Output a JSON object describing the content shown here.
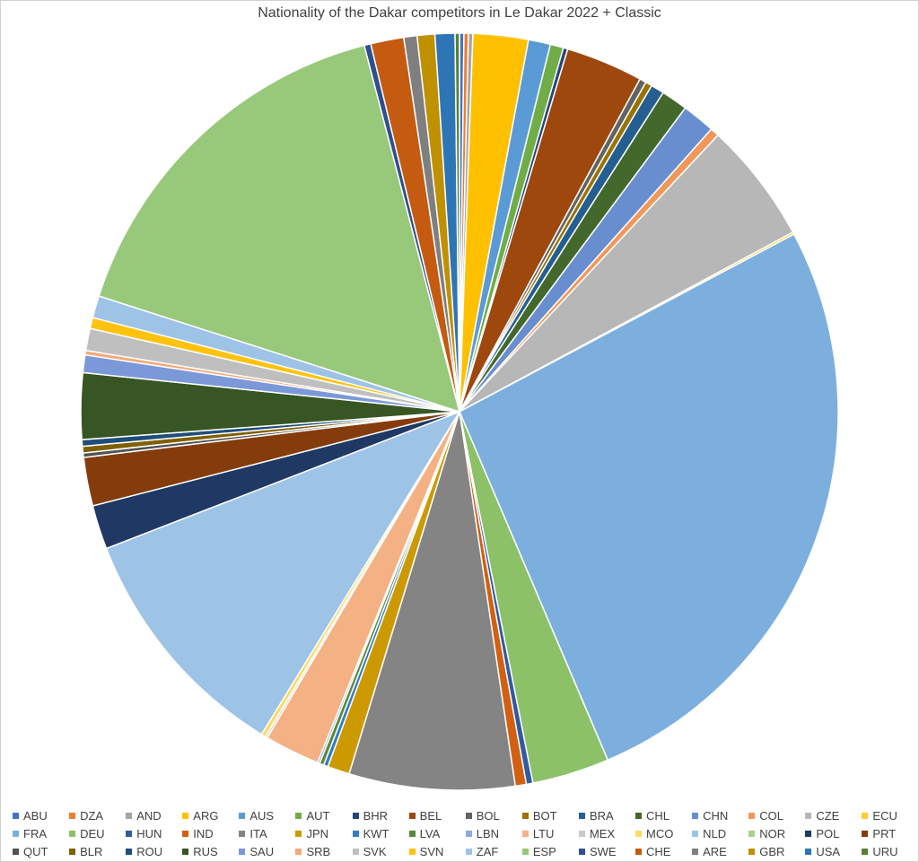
{
  "chart_data": {
    "type": "pie",
    "title": "Nationality of the Dakar competitors in Le Dakar 2022 + Classic",
    "legend_position": "bottom",
    "slices": [
      {
        "label": "ABU",
        "value": 0.2,
        "color": "#4472c4"
      },
      {
        "label": "DZA",
        "value": 0.2,
        "color": "#ed7d31"
      },
      {
        "label": "AND",
        "value": 0.2,
        "color": "#a5a5a5"
      },
      {
        "label": "ARG",
        "value": 2.5,
        "color": "#ffc000"
      },
      {
        "label": "AUS",
        "value": 1.0,
        "color": "#5b9bd5"
      },
      {
        "label": "AUT",
        "value": 0.6,
        "color": "#70ad47"
      },
      {
        "label": "BHR",
        "value": 0.2,
        "color": "#264478"
      },
      {
        "label": "BEL",
        "value": 3.5,
        "color": "#9e480e"
      },
      {
        "label": "BOL",
        "value": 0.3,
        "color": "#636363"
      },
      {
        "label": "BOT",
        "value": 0.3,
        "color": "#997300"
      },
      {
        "label": "BRA",
        "value": 0.6,
        "color": "#255e91"
      },
      {
        "label": "CHL",
        "value": 1.2,
        "color": "#43682b"
      },
      {
        "label": "CHN",
        "value": 1.5,
        "color": "#698ed0"
      },
      {
        "label": "COL",
        "value": 0.4,
        "color": "#f1975a"
      },
      {
        "label": "CZE",
        "value": 5.5,
        "color": "#b7b7b7"
      },
      {
        "label": "ECU",
        "value": 0.1,
        "color": "#ffcd33"
      },
      {
        "label": "FRA",
        "value": 28.0,
        "color": "#7cafdd"
      },
      {
        "label": "DEU",
        "value": 3.5,
        "color": "#8cc168"
      },
      {
        "label": "HUN",
        "value": 0.3,
        "color": "#335aa1"
      },
      {
        "label": "IND",
        "value": 0.5,
        "color": "#d26012"
      },
      {
        "label": "ITA",
        "value": 7.5,
        "color": "#848484"
      },
      {
        "label": "JPN",
        "value": 1.0,
        "color": "#cc9a00"
      },
      {
        "label": "KWT",
        "value": 0.2,
        "color": "#327dc2"
      },
      {
        "label": "LVA",
        "value": 0.2,
        "color": "#5a8a39"
      },
      {
        "label": "LBN",
        "value": 0.1,
        "color": "#8faadc"
      },
      {
        "label": "LTU",
        "value": 2.5,
        "color": "#f4b183"
      },
      {
        "label": "MEX",
        "value": 0.1,
        "color": "#c9c9c9"
      },
      {
        "label": "MCO",
        "value": 0.2,
        "color": "#ffd966"
      },
      {
        "label": "NLD",
        "value": 11.0,
        "color": "#9dc3e6"
      },
      {
        "label": "NOR",
        "value": 0.0,
        "color": "#a9d18e"
      },
      {
        "label": "POL",
        "value": 2.0,
        "color": "#203864"
      },
      {
        "label": "PRT",
        "value": 2.2,
        "color": "#843c0c"
      },
      {
        "label": "QUT",
        "value": 0.2,
        "color": "#525252"
      },
      {
        "label": "BLR",
        "value": 0.3,
        "color": "#7f6000"
      },
      {
        "label": "ROU",
        "value": 0.3,
        "color": "#1f4e79"
      },
      {
        "label": "RUS",
        "value": 3.0,
        "color": "#375623"
      },
      {
        "label": "SAU",
        "value": 0.8,
        "color": "#7b98d8"
      },
      {
        "label": "SRB",
        "value": 0.2,
        "color": "#f4a97a"
      },
      {
        "label": "SVK",
        "value": 1.0,
        "color": "#bfbfbf"
      },
      {
        "label": "SVN",
        "value": 0.5,
        "color": "#ffc20e"
      },
      {
        "label": "ZAF",
        "value": 1.0,
        "color": "#9dc3e6"
      },
      {
        "label": "ESP",
        "value": 17.0,
        "color": "#98c87a"
      },
      {
        "label": "SWE",
        "value": 0.3,
        "color": "#2f4f8f"
      },
      {
        "label": "CHE",
        "value": 1.5,
        "color": "#c55a11"
      },
      {
        "label": "ARE",
        "value": 0.6,
        "color": "#7f7f7f"
      },
      {
        "label": "GBR",
        "value": 0.8,
        "color": "#bf9000"
      },
      {
        "label": "USA",
        "value": 0.9,
        "color": "#2e75b6"
      },
      {
        "label": "URU",
        "value": 0.2,
        "color": "#548235"
      }
    ]
  }
}
